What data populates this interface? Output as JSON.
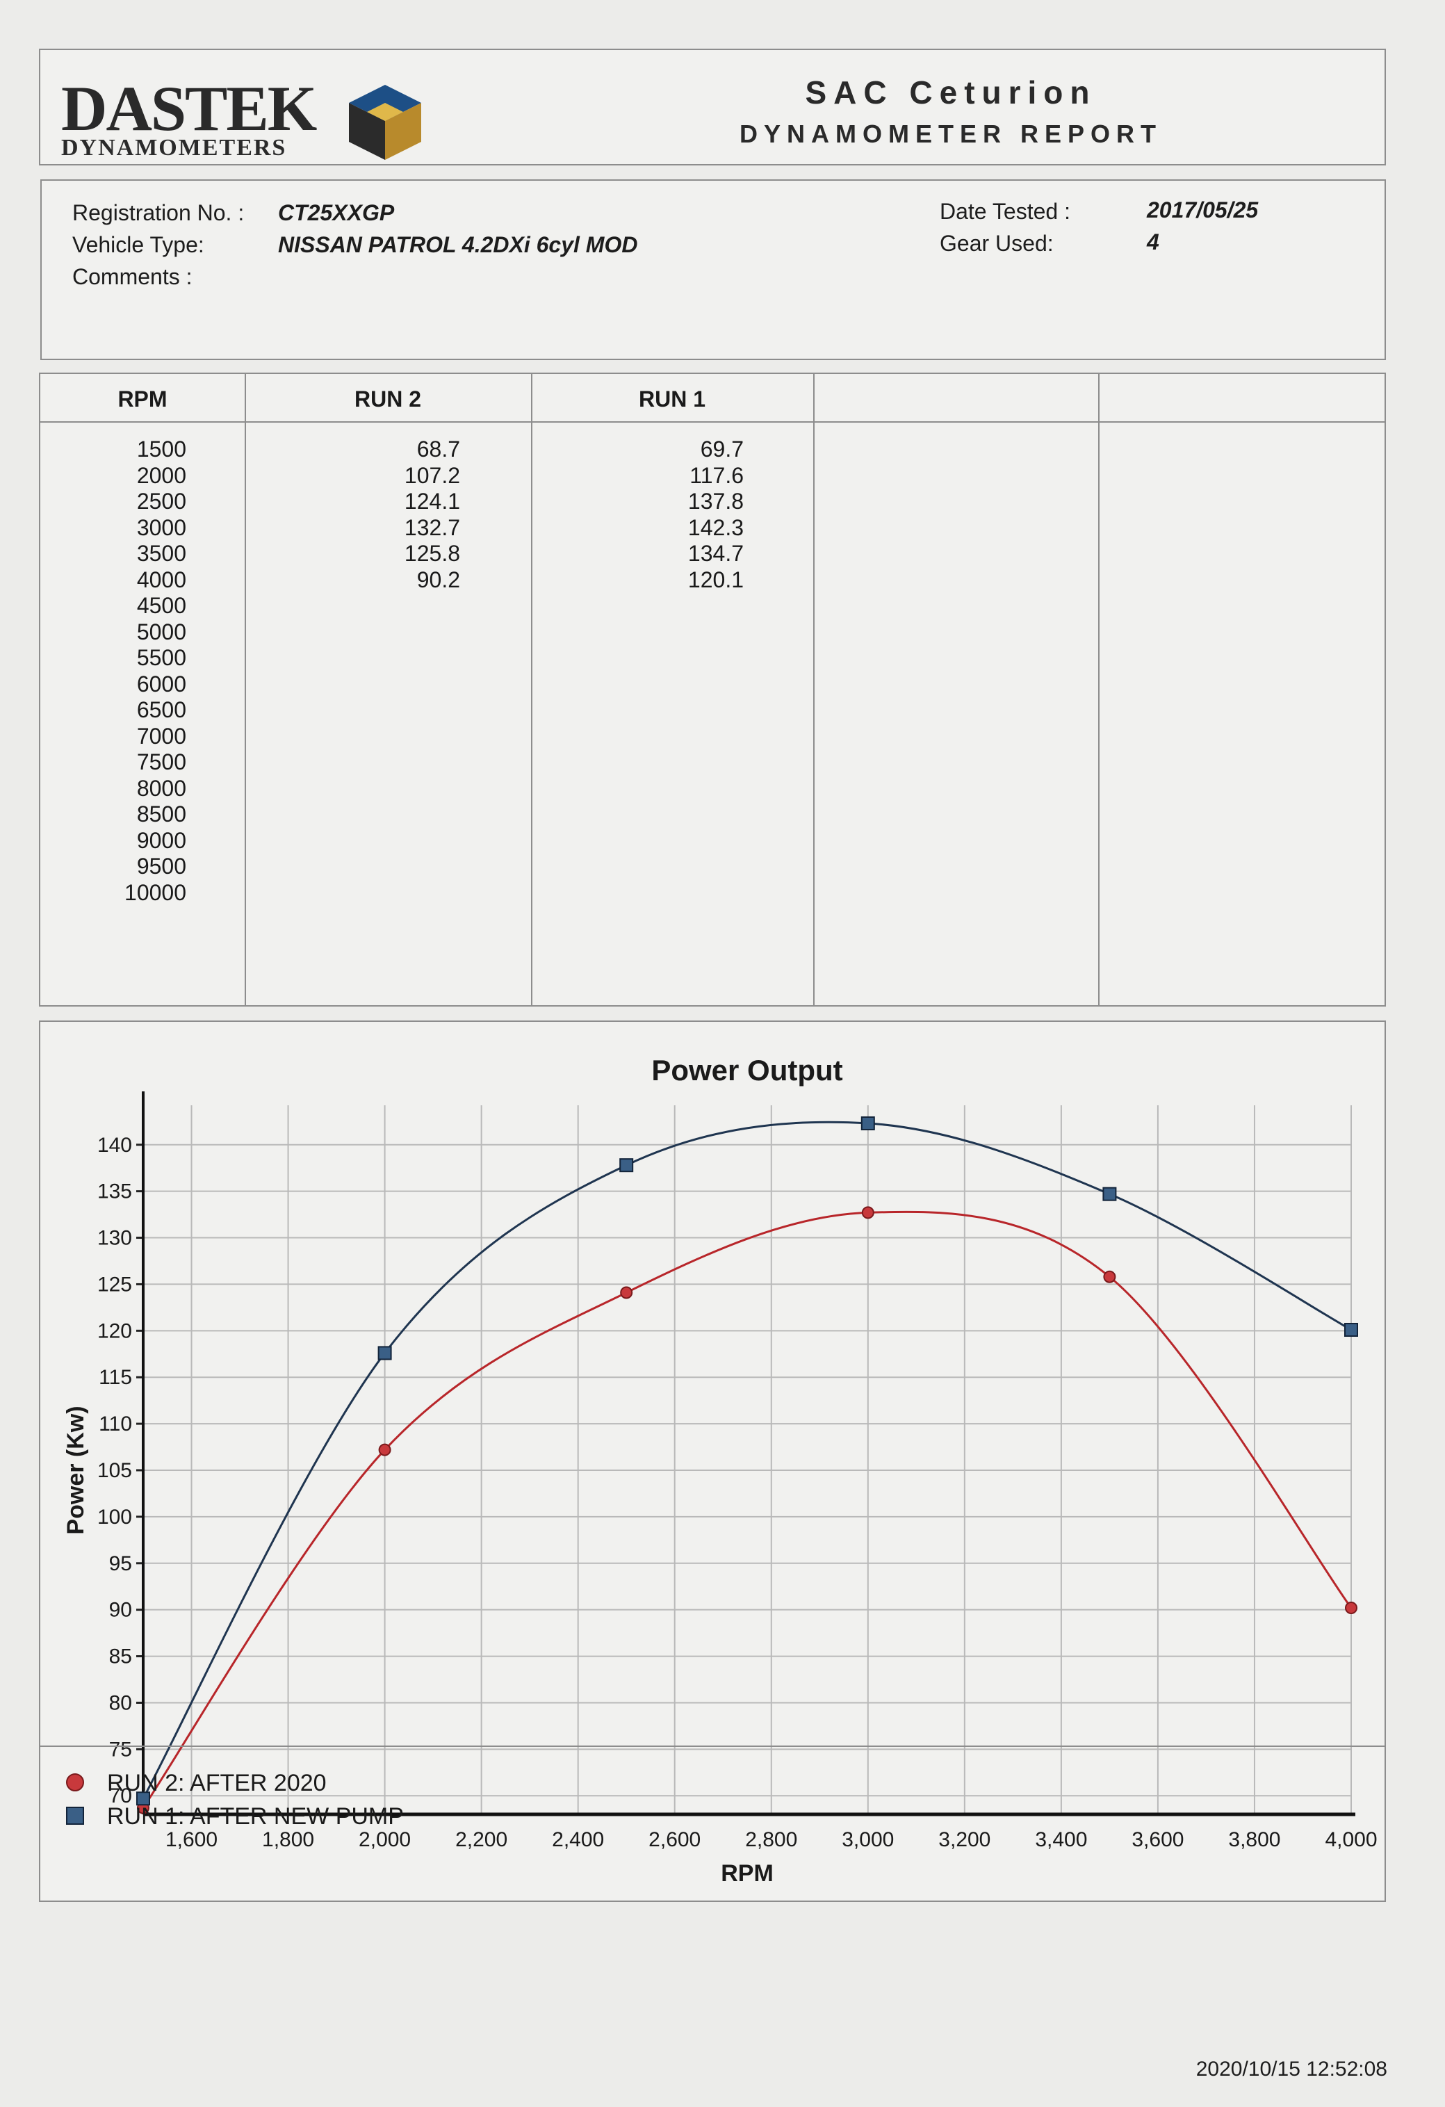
{
  "header": {
    "logo_main": "DASTEK",
    "logo_sub": "DYNAMOMETERS",
    "company": "SAC Ceturion",
    "report_title": "DYNAMOMETER REPORT"
  },
  "info": {
    "registration_label": "Registration No. :",
    "registration_value": "CT25XXGP",
    "vehicle_label": "Vehicle Type:",
    "vehicle_value": "NISSAN PATROL 4.2DXi 6cyl MOD",
    "comments_label": "Comments :",
    "date_label": "Date Tested :",
    "date_value": "2017/05/25",
    "gear_label": "Gear Used:",
    "gear_value": "4"
  },
  "table": {
    "headers": [
      "RPM",
      "RUN 2",
      "RUN 1",
      "",
      ""
    ],
    "rpm": [
      "1500",
      "2000",
      "2500",
      "3000",
      "3500",
      "4000",
      "4500",
      "5000",
      "5500",
      "6000",
      "6500",
      "7000",
      "7500",
      "8000",
      "8500",
      "9000",
      "9500",
      "10000"
    ],
    "run2": [
      "68.7",
      "107.2",
      "124.1",
      "132.7",
      "125.8",
      "90.2"
    ],
    "run1": [
      "69.7",
      "117.6",
      "137.8",
      "142.3",
      "134.7",
      "120.1"
    ]
  },
  "chart_data": {
    "type": "line",
    "title": "Power Output",
    "xlabel": "RPM",
    "ylabel": "Power (Kw)",
    "xlim": [
      1500,
      4000
    ],
    "ylim": [
      68,
      142
    ],
    "x_ticks": [
      1600,
      1800,
      2000,
      2200,
      2400,
      2600,
      2800,
      3000,
      3200,
      3400,
      3600,
      3800,
      4000
    ],
    "x_tick_labels": [
      "1,600",
      "1,800",
      "2,000",
      "2,200",
      "2,400",
      "2,600",
      "2,800",
      "3,000",
      "3,200",
      "3,400",
      "3,600",
      "3,800",
      "4,000"
    ],
    "y_ticks": [
      70,
      75,
      80,
      85,
      90,
      95,
      100,
      105,
      110,
      115,
      120,
      125,
      130,
      135,
      140
    ],
    "y_tick_labels": [
      "70",
      "75",
      "80",
      "85",
      "90",
      "95",
      "100",
      "105",
      "110",
      "115",
      "120",
      "125",
      "130",
      "135",
      "140"
    ],
    "grid": true,
    "x": [
      1500,
      2000,
      2500,
      3000,
      3500,
      4000
    ],
    "series": [
      {
        "name": "RUN 2: AFTER 2020",
        "values": [
          68.7,
          107.2,
          124.1,
          132.7,
          125.8,
          90.2
        ],
        "color": "#b8262a",
        "marker": "circle"
      },
      {
        "name": "RUN 1: AFTER NEW PUMP",
        "values": [
          69.7,
          117.6,
          137.8,
          142.3,
          134.7,
          120.1
        ],
        "color": "#1f3550",
        "marker": "square"
      }
    ],
    "legend_position": "bottom-left"
  },
  "footer": {
    "timestamp": "2020/10/15 12:52:08"
  }
}
